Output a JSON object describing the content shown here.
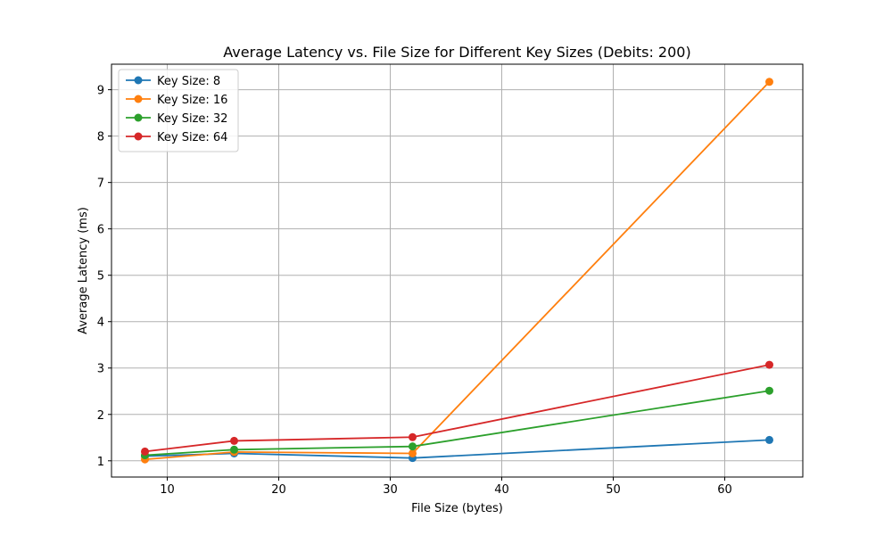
{
  "chart_data": {
    "type": "line",
    "title": "Average Latency vs. File Size for Different Key Sizes (Debits: 200)",
    "xlabel": "File Size (bytes)",
    "ylabel": "Average Latency (ms)",
    "x": [
      8,
      16,
      32,
      64
    ],
    "xlim": [
      5,
      67
    ],
    "ylim": [
      0.65,
      9.55
    ],
    "xticks": [
      10,
      20,
      30,
      40,
      50,
      60
    ],
    "yticks": [
      1,
      2,
      3,
      4,
      5,
      6,
      7,
      8,
      9
    ],
    "grid": true,
    "legend_position": "top-left",
    "series": [
      {
        "name": "Key Size: 8",
        "color": "#1f77b4",
        "values": [
          1.1,
          1.16,
          1.06,
          1.45
        ]
      },
      {
        "name": "Key Size: 16",
        "color": "#ff7f0e",
        "values": [
          1.03,
          1.19,
          1.16,
          9.17
        ]
      },
      {
        "name": "Key Size: 32",
        "color": "#2ca02c",
        "values": [
          1.12,
          1.24,
          1.31,
          2.51
        ]
      },
      {
        "name": "Key Size: 64",
        "color": "#d62728",
        "values": [
          1.2,
          1.43,
          1.51,
          3.07
        ]
      }
    ]
  }
}
